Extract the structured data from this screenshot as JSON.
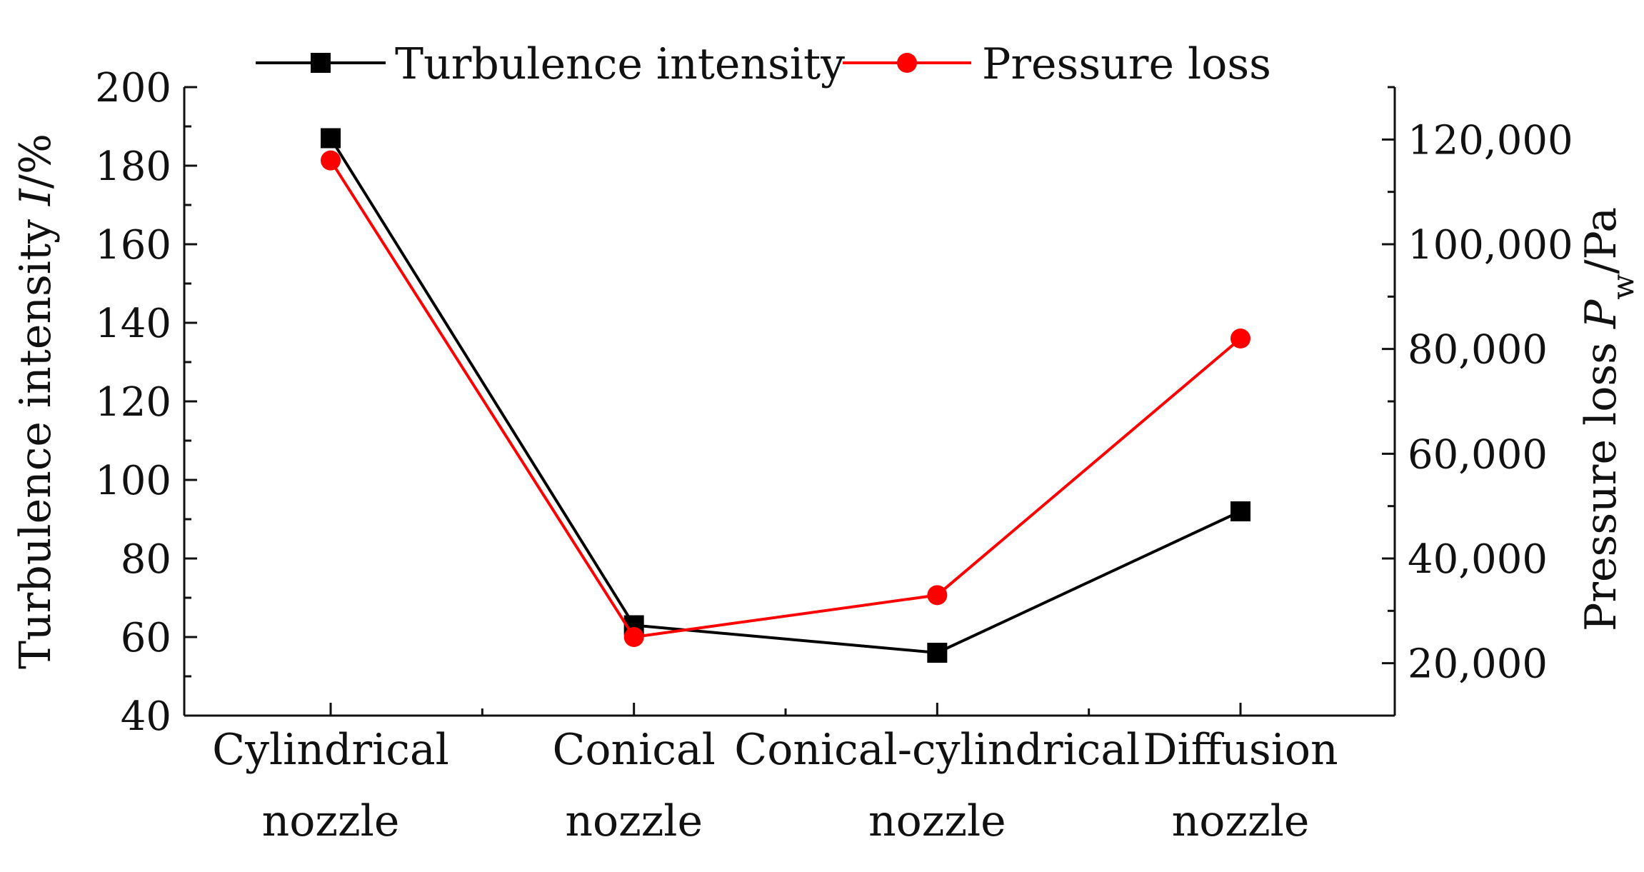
{
  "chart_data": {
    "type": "line",
    "title": "",
    "categories": [
      [
        "Cylindrical",
        "nozzle"
      ],
      [
        "Conical",
        "nozzle"
      ],
      [
        "Conical-cylindrical",
        "nozzle"
      ],
      [
        "Diffusion",
        "nozzle"
      ]
    ],
    "left_axis": {
      "label_main": "Turbulence intensity ",
      "label_italic": "I",
      "label_unit": "/%",
      "range": [
        40,
        200
      ],
      "ticks": [
        40,
        60,
        80,
        100,
        120,
        140,
        160,
        180,
        200
      ]
    },
    "right_axis": {
      "label_main": "Pressure loss ",
      "label_italic": "P",
      "label_sub": "w",
      "label_unit": "/Pa",
      "range": [
        10000,
        130000
      ],
      "ticks": [
        20000,
        40000,
        60000,
        80000,
        100000,
        120000
      ],
      "tick_labels": [
        "20,000",
        "40,000",
        "60,000",
        "80,000",
        "100,000",
        "120,000"
      ]
    },
    "series": [
      {
        "name": "Turbulence intensity",
        "axis": "left",
        "color": "#000000",
        "marker": "square",
        "values": [
          187,
          63,
          56,
          92
        ]
      },
      {
        "name": "Pressure loss",
        "axis": "right",
        "color": "#ff0000",
        "marker": "circle",
        "values": [
          116000,
          25000,
          33000,
          82000
        ]
      }
    ],
    "legend": {
      "position": "top",
      "entries": [
        "Turbulence intensity",
        "Pressure loss"
      ]
    },
    "grid": false
  }
}
